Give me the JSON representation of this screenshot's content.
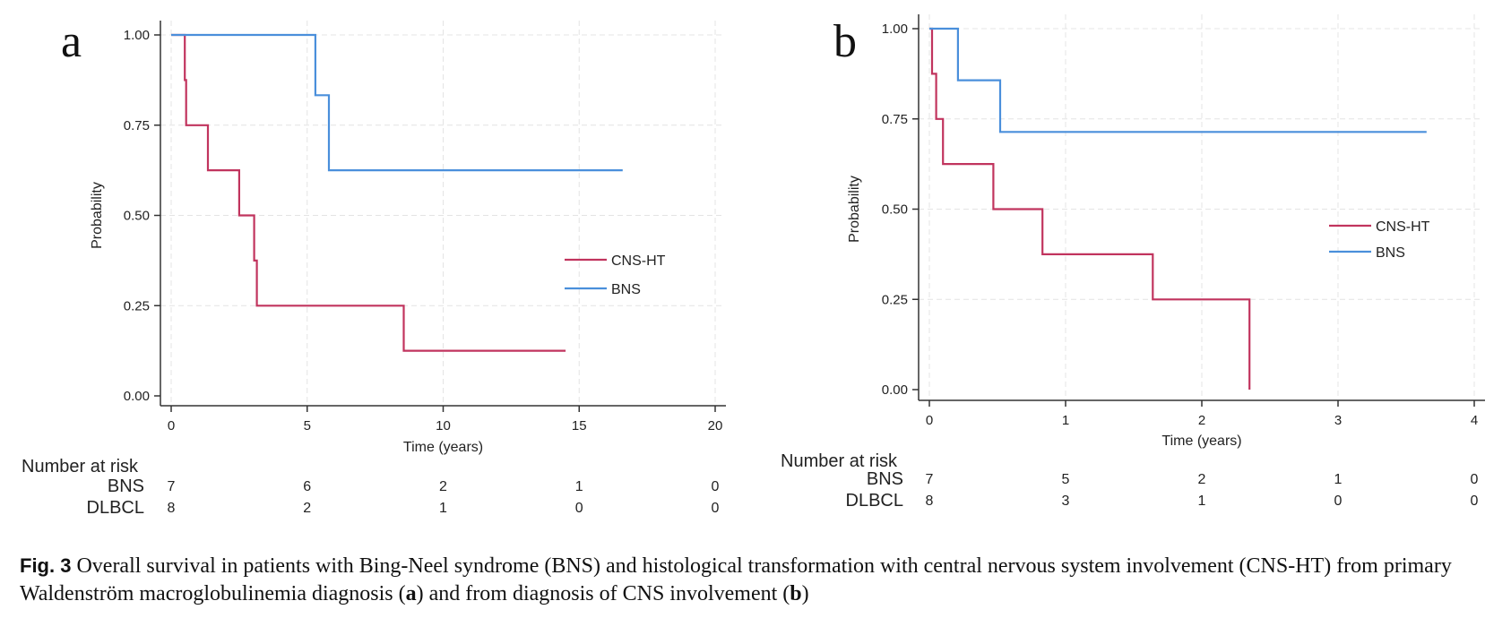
{
  "chart_data": [
    {
      "panel": "a",
      "type": "line",
      "step": true,
      "xlabel": "Time (years)",
      "ylabel": "Probability",
      "xlim": [
        0,
        20
      ],
      "ylim": [
        0,
        1
      ],
      "xticks": [
        0,
        5,
        10,
        15,
        20
      ],
      "yticks": [
        "0.00",
        "0.25",
        "0.50",
        "0.75",
        "1.00"
      ],
      "grid": true,
      "legend_position": "right-center",
      "series": [
        {
          "name": "CNS-HT",
          "color": "#c1345e",
          "points": [
            [
              0,
              1.0
            ],
            [
              0.5,
              1.0
            ],
            [
              0.5,
              0.875
            ],
            [
              0.55,
              0.875
            ],
            [
              0.55,
              0.75
            ],
            [
              1.35,
              0.75
            ],
            [
              1.35,
              0.625
            ],
            [
              2.5,
              0.625
            ],
            [
              2.5,
              0.5
            ],
            [
              3.05,
              0.5
            ],
            [
              3.05,
              0.375
            ],
            [
              3.15,
              0.375
            ],
            [
              3.15,
              0.25
            ],
            [
              8.55,
              0.25
            ],
            [
              8.55,
              0.125
            ],
            [
              14.5,
              0.125
            ]
          ]
        },
        {
          "name": "BNS",
          "color": "#4a8fdb",
          "points": [
            [
              0,
              1.0
            ],
            [
              5.3,
              1.0
            ],
            [
              5.3,
              0.833
            ],
            [
              5.8,
              0.833
            ],
            [
              5.8,
              0.625
            ],
            [
              16.6,
              0.625
            ]
          ]
        }
      ],
      "risk_table": {
        "title": "Number at risk",
        "times": [
          0,
          5,
          10,
          15,
          20
        ],
        "rows": [
          {
            "label": "BNS",
            "values": [
              "7",
              "6",
              "2",
              "1",
              "0"
            ]
          },
          {
            "label": "DLBCL",
            "values": [
              "8",
              "2",
              "1",
              "0",
              "0"
            ]
          }
        ]
      }
    },
    {
      "panel": "b",
      "type": "line",
      "step": true,
      "xlabel": "Time (years)",
      "ylabel": "Probability",
      "xlim": [
        0,
        4
      ],
      "ylim": [
        0,
        1
      ],
      "xticks": [
        0,
        1,
        2,
        3,
        4
      ],
      "yticks": [
        "0.00",
        "0.25",
        "0.50",
        "0.75",
        "1.00"
      ],
      "grid": true,
      "legend_position": "right-center",
      "series": [
        {
          "name": "CNS-HT",
          "color": "#c1345e",
          "points": [
            [
              0,
              1.0
            ],
            [
              0.02,
              1.0
            ],
            [
              0.02,
              0.875
            ],
            [
              0.05,
              0.875
            ],
            [
              0.05,
              0.75
            ],
            [
              0.1,
              0.75
            ],
            [
              0.1,
              0.625
            ],
            [
              0.47,
              0.625
            ],
            [
              0.47,
              0.5
            ],
            [
              0.83,
              0.5
            ],
            [
              0.83,
              0.375
            ],
            [
              1.64,
              0.375
            ],
            [
              1.64,
              0.25
            ],
            [
              2.35,
              0.25
            ],
            [
              2.35,
              0.0
            ]
          ]
        },
        {
          "name": "BNS",
          "color": "#4a8fdb",
          "points": [
            [
              0,
              1.0
            ],
            [
              0.21,
              1.0
            ],
            [
              0.21,
              0.857
            ],
            [
              0.52,
              0.857
            ],
            [
              0.52,
              0.714
            ],
            [
              3.65,
              0.714
            ]
          ]
        }
      ],
      "risk_table": {
        "title": "Number at risk",
        "times": [
          0,
          1,
          2,
          3,
          4
        ],
        "rows": [
          {
            "label": "BNS",
            "values": [
              "7",
              "5",
              "2",
              "1",
              "0"
            ]
          },
          {
            "label": "DLBCL",
            "values": [
              "8",
              "3",
              "1",
              "0",
              "0"
            ]
          }
        ]
      }
    }
  ],
  "caption": {
    "fig_label": "Fig. 3",
    "part1": " Overall survival in patients with Bing-Neel syndrome (BNS) and histological transformation with central nervous system involvement (CNS-HT) from primary Waldenström macroglobulinemia diagnosis (",
    "bold_a": "a",
    "part2": ") and from diagnosis of CNS involvement (",
    "bold_b": "b",
    "part3": ")"
  }
}
